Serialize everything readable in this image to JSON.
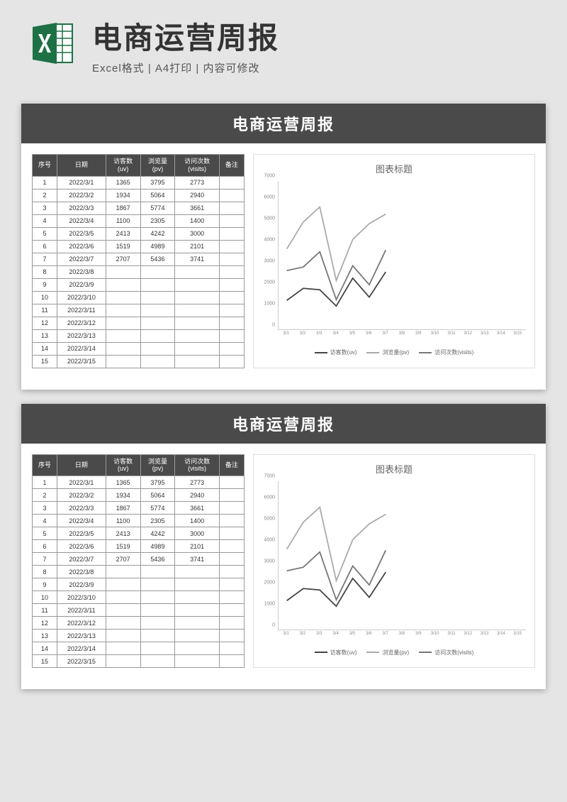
{
  "banner": {
    "title": "电商运营周报",
    "subtitle": "Excel格式 | A4打印 | 内容可修改",
    "icon_color": "#1e7145"
  },
  "report": {
    "title": "电商运营周报",
    "table": {
      "columns": [
        "序号",
        "日期",
        "访客数\n(uv)",
        "浏览量\n(pv)",
        "访问次数\n(visits)",
        "备注"
      ],
      "rows": [
        [
          "1",
          "2022/3/1",
          "1365",
          "3795",
          "2773",
          ""
        ],
        [
          "2",
          "2022/3/2",
          "1934",
          "5064",
          "2940",
          ""
        ],
        [
          "3",
          "2022/3/3",
          "1867",
          "5774",
          "3661",
          ""
        ],
        [
          "4",
          "2022/3/4",
          "1100",
          "2305",
          "1400",
          ""
        ],
        [
          "5",
          "2022/3/5",
          "2413",
          "4242",
          "3000",
          ""
        ],
        [
          "6",
          "2022/3/6",
          "1519",
          "4989",
          "2101",
          ""
        ],
        [
          "7",
          "2022/3/7",
          "2707",
          "5436",
          "3741",
          ""
        ],
        [
          "8",
          "2022/3/8",
          "",
          "",
          "",
          ""
        ],
        [
          "9",
          "2022/3/9",
          "",
          "",
          "",
          ""
        ],
        [
          "10",
          "2022/3/10",
          "",
          "",
          "",
          ""
        ],
        [
          "11",
          "2022/3/11",
          "",
          "",
          "",
          ""
        ],
        [
          "12",
          "2022/3/12",
          "",
          "",
          "",
          ""
        ],
        [
          "13",
          "2022/3/13",
          "",
          "",
          "",
          ""
        ],
        [
          "14",
          "2022/3/14",
          "",
          "",
          "",
          ""
        ],
        [
          "15",
          "2022/3/15",
          "",
          "",
          "",
          ""
        ]
      ]
    },
    "chart": {
      "title": "图表标题",
      "type": "line",
      "ylim": [
        0,
        7000
      ],
      "ytick_step": 1000,
      "x_labels": [
        "3/1",
        "3/2",
        "3/3",
        "3/4",
        "3/5",
        "3/6",
        "3/7",
        "3/8",
        "3/9",
        "3/10",
        "3/11",
        "3/12",
        "3/13",
        "3/14",
        "3/15"
      ],
      "series": [
        {
          "name": "访客数(uv)",
          "color": "#444444",
          "width": 1.8,
          "values": [
            1365,
            1934,
            1867,
            1100,
            2413,
            1519,
            2707
          ]
        },
        {
          "name": "浏览量(pv)",
          "color": "#aaaaaa",
          "width": 1.8,
          "values": [
            3795,
            5064,
            5774,
            2305,
            4242,
            4989,
            5436
          ]
        },
        {
          "name": "访问次数(visits)",
          "color": "#777777",
          "width": 1.8,
          "values": [
            2773,
            2940,
            3661,
            1400,
            3000,
            2101,
            3741
          ]
        }
      ],
      "background_color": "#ffffff",
      "grid_color": "#eeeeee",
      "axis_color": "#cccccc",
      "tick_fontsize": 7,
      "tick_color": "#888888"
    }
  }
}
